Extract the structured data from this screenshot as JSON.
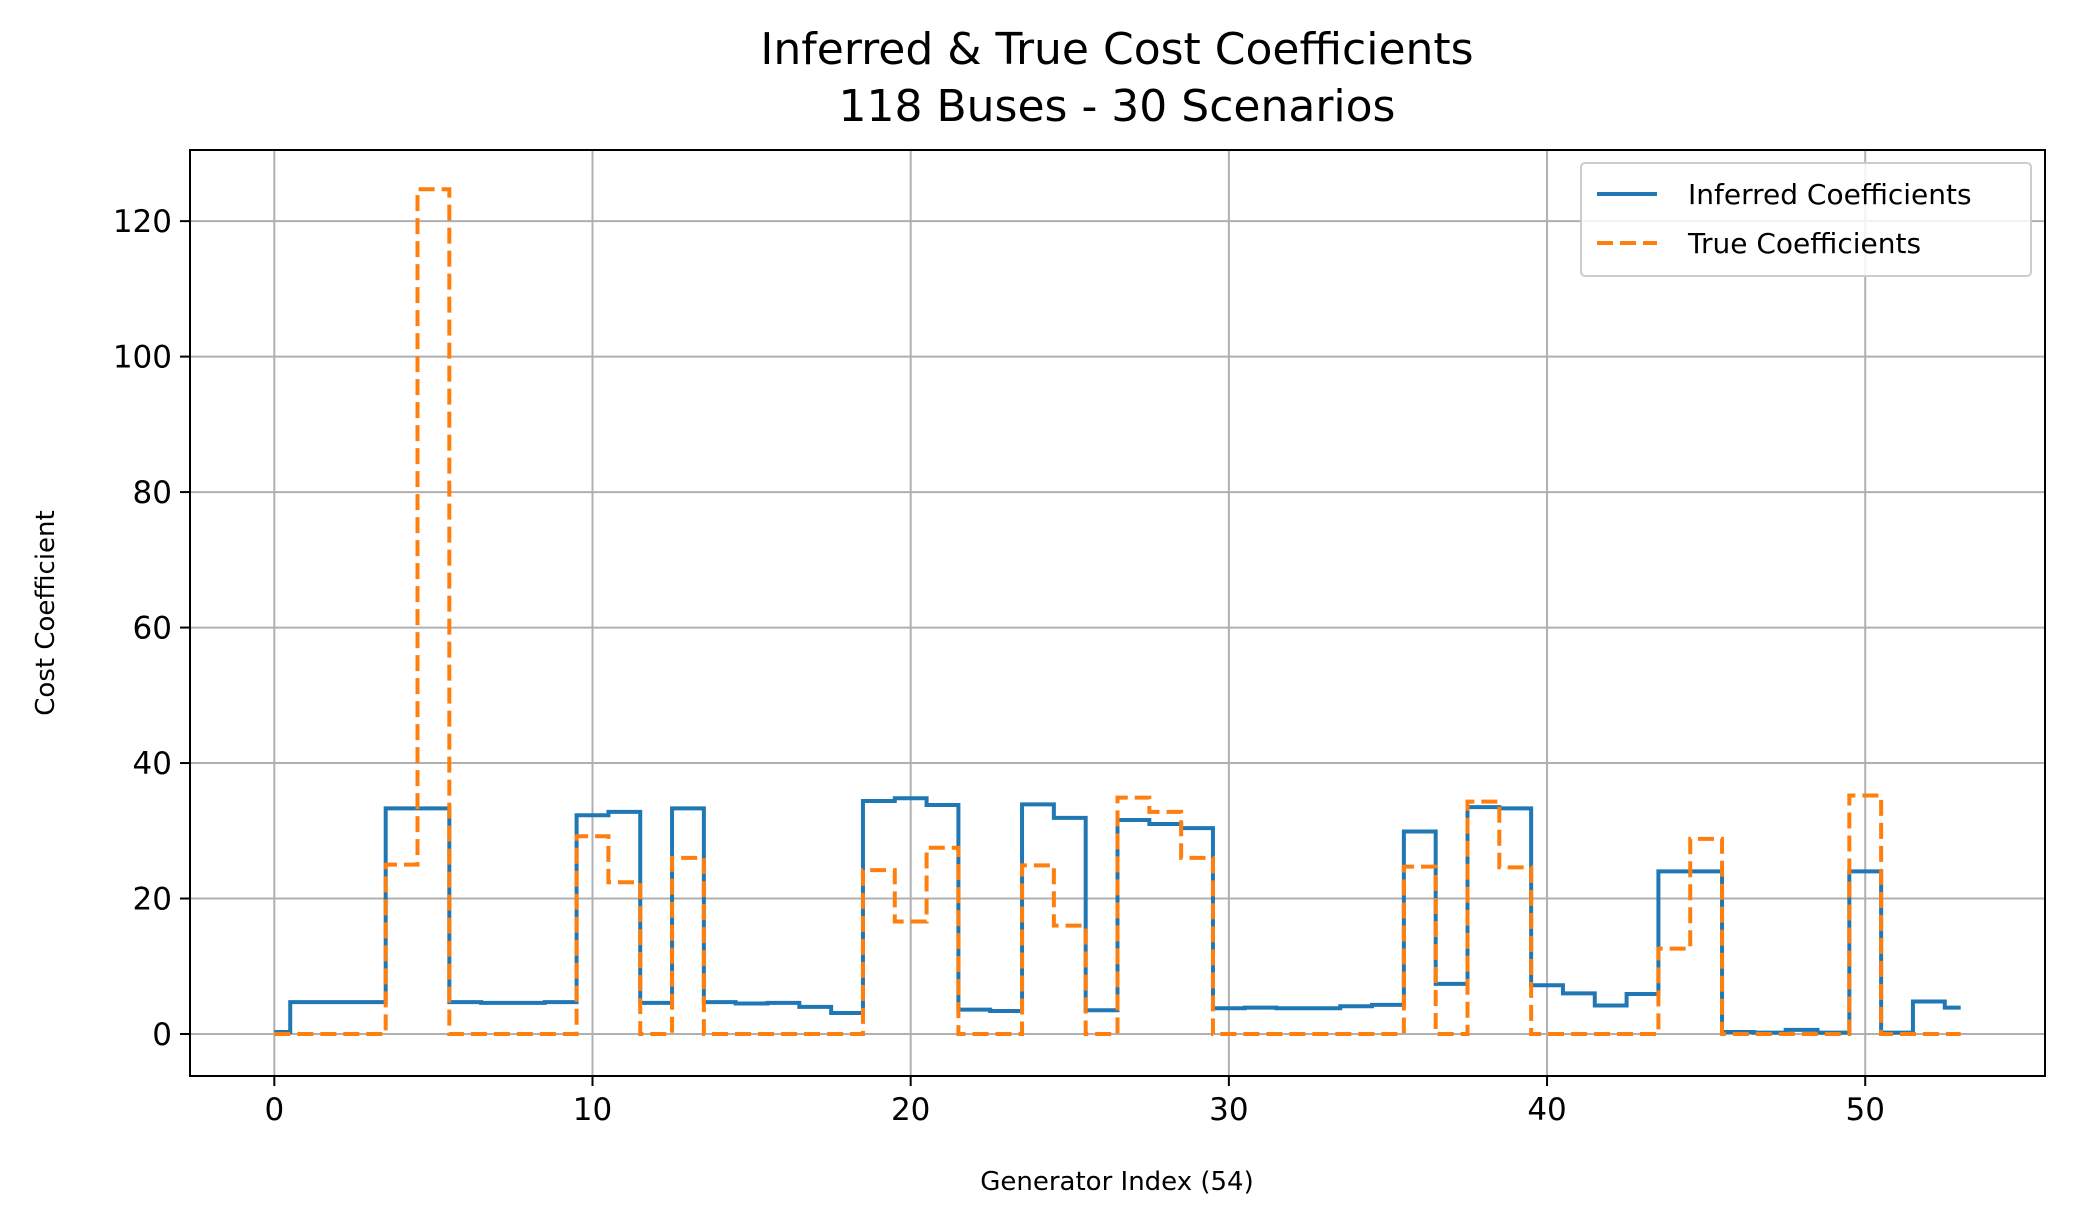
{
  "chart_data": {
    "type": "line",
    "drawstyle": "steps-mid",
    "title": "Inferred & True Cost Coefficients",
    "subtitle": "118 Buses - 30 Scenarios",
    "xlabel": "Generator Index (54)",
    "ylabel": "Cost Coefficient",
    "xlim": [
      -2.65,
      55.65
    ],
    "ylim": [
      -6.2,
      130.5
    ],
    "xticks": [
      0,
      10,
      20,
      30,
      40,
      50
    ],
    "yticks": [
      0,
      20,
      40,
      60,
      80,
      100,
      120
    ],
    "grid": true,
    "legend_position": "upper right",
    "x": [
      0,
      1,
      2,
      3,
      4,
      5,
      6,
      7,
      8,
      9,
      10,
      11,
      12,
      13,
      14,
      15,
      16,
      17,
      18,
      19,
      20,
      21,
      22,
      23,
      24,
      25,
      26,
      27,
      28,
      29,
      30,
      31,
      32,
      33,
      34,
      35,
      36,
      37,
      38,
      39,
      40,
      41,
      42,
      43,
      44,
      45,
      46,
      47,
      48,
      49,
      50,
      51,
      52,
      53
    ],
    "series": [
      {
        "name": "Inferred Coefficients",
        "color": "#1f77b4",
        "style": "solid",
        "values": [
          0.3,
          4.7,
          4.7,
          4.7,
          33.3,
          33.3,
          4.7,
          4.6,
          4.6,
          4.7,
          32.3,
          32.8,
          4.6,
          33.3,
          4.7,
          4.5,
          4.6,
          4.0,
          3.1,
          34.4,
          34.8,
          33.8,
          3.6,
          3.4,
          33.9,
          31.9,
          3.5,
          31.6,
          31.0,
          30.4,
          3.8,
          3.9,
          3.8,
          3.8,
          4.1,
          4.3,
          29.9,
          7.4,
          33.5,
          33.3,
          7.2,
          6.0,
          4.2,
          5.9,
          24.0,
          24.0,
          0.3,
          0.2,
          0.6,
          0.2,
          24.0,
          0.2,
          4.8,
          3.9
        ]
      },
      {
        "name": "True Coefficients",
        "color": "#ff7f0e",
        "style": "dashed",
        "values": [
          0,
          0,
          0,
          0,
          25.0,
          124.7,
          0,
          0,
          0,
          0,
          29.2,
          22.4,
          0,
          26.0,
          0,
          0,
          0,
          0,
          0,
          24.2,
          16.6,
          27.5,
          0,
          0,
          24.9,
          16.0,
          0,
          34.9,
          32.8,
          26.0,
          0,
          0,
          0,
          0,
          0,
          0,
          24.7,
          0,
          34.3,
          24.6,
          0,
          0,
          0,
          0,
          12.6,
          28.8,
          0,
          0,
          0,
          0,
          35.2,
          0,
          0,
          0
        ]
      }
    ]
  }
}
